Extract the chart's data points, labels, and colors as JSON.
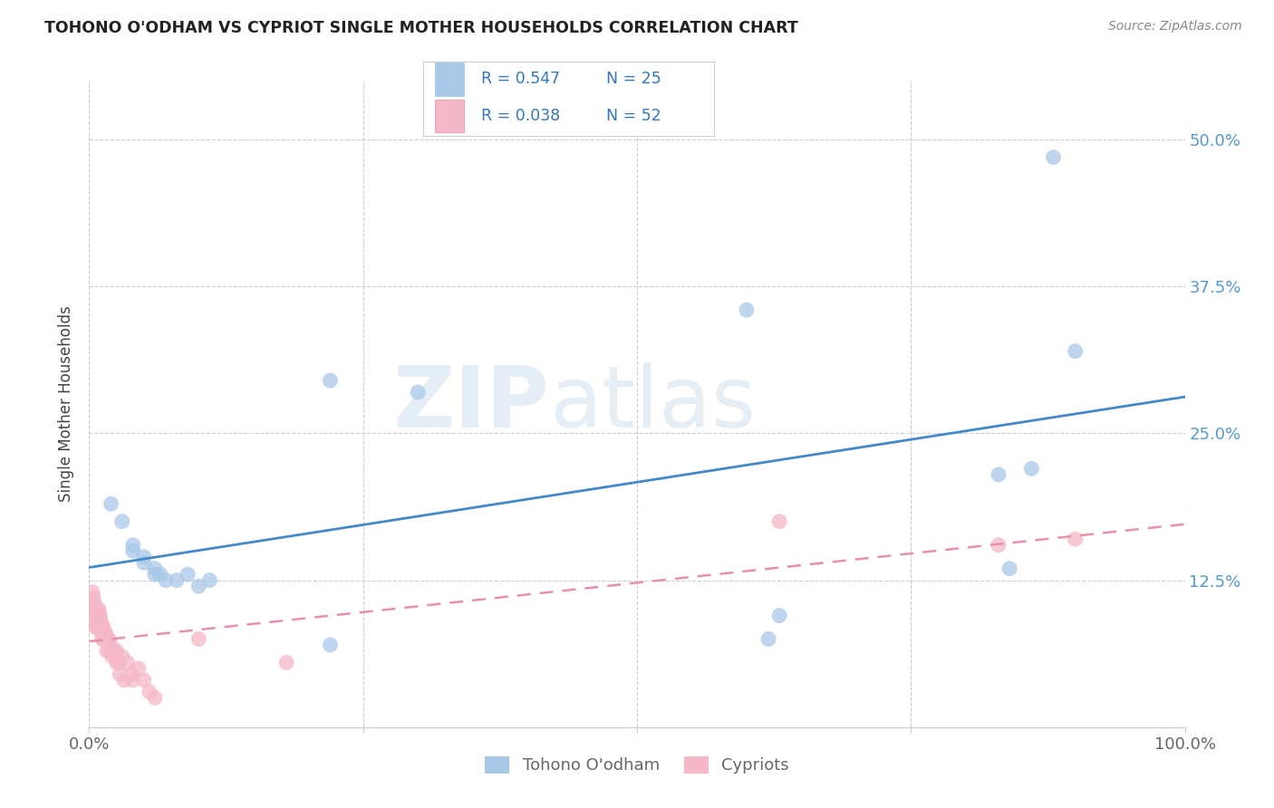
{
  "title": "TOHONO O'ODHAM VS CYPRIOT SINGLE MOTHER HOUSEHOLDS CORRELATION CHART",
  "source": "Source: ZipAtlas.com",
  "ylabel_label": "Single Mother Households",
  "xlim": [
    0,
    1.0
  ],
  "ylim": [
    0,
    0.55
  ],
  "xtick_labels": [
    "0.0%",
    "",
    "",
    "",
    "100.0%"
  ],
  "ytick_labels": [
    "",
    "12.5%",
    "25.0%",
    "37.5%",
    "50.0%"
  ],
  "ytick_values": [
    0.0,
    0.125,
    0.25,
    0.375,
    0.5
  ],
  "blue_R": 0.547,
  "blue_N": 25,
  "pink_R": 0.038,
  "pink_N": 52,
  "blue_color": "#a8c8e8",
  "pink_color": "#f4b8c8",
  "blue_line_color": "#4488cc",
  "pink_line_color": "#e890a8",
  "background_color": "#ffffff",
  "watermark_zip": "ZIP",
  "watermark_atlas": "atlas",
  "blue_scatter_x": [
    0.02,
    0.03,
    0.04,
    0.04,
    0.05,
    0.05,
    0.06,
    0.06,
    0.065,
    0.07,
    0.08,
    0.09,
    0.1,
    0.11,
    0.22,
    0.6,
    0.63,
    0.83,
    0.84,
    0.86,
    0.88,
    0.9,
    0.3,
    0.62,
    0.22
  ],
  "blue_scatter_y": [
    0.19,
    0.175,
    0.155,
    0.15,
    0.145,
    0.14,
    0.135,
    0.13,
    0.13,
    0.125,
    0.125,
    0.13,
    0.12,
    0.125,
    0.295,
    0.355,
    0.095,
    0.215,
    0.135,
    0.22,
    0.485,
    0.32,
    0.285,
    0.075,
    0.07
  ],
  "pink_scatter_x": [
    0.003,
    0.003,
    0.004,
    0.004,
    0.005,
    0.005,
    0.005,
    0.006,
    0.006,
    0.007,
    0.007,
    0.008,
    0.008,
    0.009,
    0.009,
    0.01,
    0.01,
    0.011,
    0.011,
    0.012,
    0.012,
    0.013,
    0.013,
    0.014,
    0.015,
    0.015,
    0.016,
    0.016,
    0.017,
    0.018,
    0.019,
    0.02,
    0.021,
    0.022,
    0.025,
    0.025,
    0.027,
    0.028,
    0.03,
    0.032,
    0.035,
    0.038,
    0.04,
    0.045,
    0.05,
    0.055,
    0.06,
    0.1,
    0.18,
    0.63,
    0.83,
    0.9
  ],
  "pink_scatter_y": [
    0.115,
    0.105,
    0.11,
    0.095,
    0.105,
    0.1,
    0.09,
    0.1,
    0.085,
    0.1,
    0.09,
    0.095,
    0.085,
    0.1,
    0.09,
    0.095,
    0.085,
    0.09,
    0.08,
    0.085,
    0.075,
    0.085,
    0.075,
    0.08,
    0.08,
    0.075,
    0.075,
    0.065,
    0.075,
    0.075,
    0.065,
    0.07,
    0.06,
    0.065,
    0.065,
    0.055,
    0.055,
    0.045,
    0.06,
    0.04,
    0.055,
    0.045,
    0.04,
    0.05,
    0.04,
    0.03,
    0.025,
    0.075,
    0.055,
    0.175,
    0.155,
    0.16
  ]
}
